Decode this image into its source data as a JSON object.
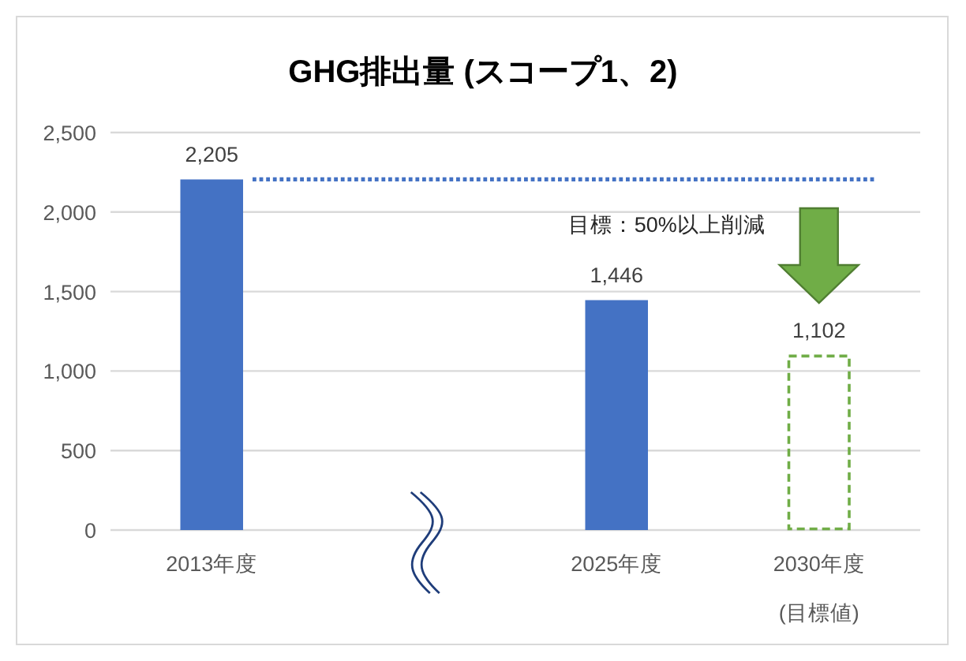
{
  "chart_data": {
    "type": "bar",
    "title": "GHG排出量 (スコープ1、2)",
    "categories": [
      "2013年度",
      null,
      "2025年度",
      "2030年度\n(目標値)"
    ],
    "series": [
      {
        "color": "#4472c4",
        "values": [
          2205,
          null,
          1446,
          null
        ],
        "value_labels": [
          "2,205",
          null,
          "1,446",
          null
        ]
      },
      {
        "color": "#70ad47",
        "line_style": "dashed",
        "values": [
          null,
          null,
          null,
          1102
        ],
        "value_labels": [
          null,
          null,
          null,
          "1,102"
        ]
      }
    ],
    "stacked": true,
    "ylim": [
      0,
      2500
    ],
    "yticks": [
      0,
      500,
      {
        "value": 1000,
        "label": "1,000"
      },
      {
        "value": 1500,
        "label": "1,500"
      },
      {
        "value": 2000,
        "label": "2,000"
      },
      {
        "value": 2500,
        "label": "2,500"
      }
    ],
    "grid": "y",
    "ref_lines": [
      {
        "axis": "y",
        "value": 2205,
        "color": "#4472c4",
        "line_style": "dotted"
      }
    ],
    "annotations": [
      "目標：50%以上削減"
    ]
  }
}
